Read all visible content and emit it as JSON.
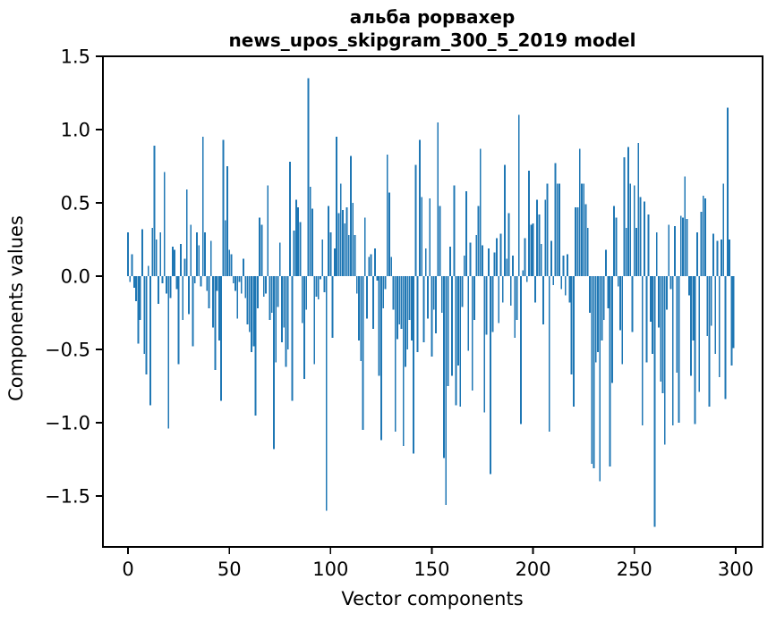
{
  "chart_data": {
    "type": "bar",
    "title_line1": "альба рорвахер",
    "title_line2": "news_upos_skipgram_300_5_2019 model",
    "xlabel": "Vector components",
    "ylabel": "Components values",
    "x_ticks": [
      0,
      50,
      100,
      150,
      200,
      250,
      300
    ],
    "y_ticks": [
      1.5,
      1.0,
      0.5,
      0.0,
      -0.5,
      -1.0,
      -1.5
    ],
    "xlim": [
      -12.4,
      313.3
    ],
    "ylim": [
      -1.848,
      1.5
    ],
    "bar_color": "#1f77b4",
    "spine_color": "#000000",
    "bar_width_units": 0.8,
    "x_start": 0,
    "grid": false,
    "legend": null,
    "values": [
      0.3,
      -0.04,
      0.15,
      -0.08,
      -0.17,
      -0.46,
      -0.3,
      0.32,
      -0.53,
      -0.67,
      0.07,
      -0.88,
      0.33,
      0.89,
      0.25,
      -0.19,
      0.3,
      -0.05,
      0.71,
      -0.12,
      -1.04,
      -0.15,
      0.2,
      0.18,
      -0.09,
      -0.6,
      0.22,
      -0.3,
      0.12,
      0.59,
      -0.26,
      0.35,
      -0.48,
      -0.05,
      0.3,
      0.21,
      -0.07,
      0.95,
      0.3,
      -0.1,
      -0.22,
      0.24,
      -0.35,
      -0.64,
      -0.1,
      -0.44,
      -0.85,
      0.93,
      0.38,
      0.75,
      0.18,
      0.15,
      -0.05,
      -0.1,
      -0.29,
      -0.04,
      -0.12,
      0.12,
      -0.15,
      -0.33,
      -0.38,
      -0.52,
      -0.48,
      -0.95,
      -0.22,
      0.4,
      0.35,
      -0.14,
      -0.12,
      0.62,
      -0.3,
      -0.25,
      -1.18,
      -0.59,
      -0.21,
      0.23,
      -0.45,
      -0.35,
      -0.62,
      -0.5,
      0.78,
      -0.85,
      0.31,
      0.52,
      0.47,
      0.37,
      -0.32,
      -0.7,
      -0.23,
      1.35,
      0.61,
      0.46,
      -0.6,
      -0.14,
      -0.16,
      -0.02,
      0.25,
      -0.11,
      -1.6,
      0.48,
      0.3,
      -0.42,
      0.19,
      0.95,
      0.43,
      0.63,
      0.45,
      0.36,
      0.47,
      0.28,
      0.82,
      0.5,
      0.28,
      -0.12,
      -0.44,
      -0.58,
      -1.05,
      0.4,
      -0.29,
      0.13,
      0.15,
      -0.36,
      0.19,
      -0.03,
      -0.68,
      -1.12,
      -0.22,
      -0.09,
      0.83,
      0.57,
      0.13,
      -0.23,
      -1.06,
      -0.43,
      -0.33,
      -0.36,
      -1.16,
      -0.62,
      -0.5,
      -0.3,
      -0.44,
      -1.21,
      0.76,
      -0.52,
      0.93,
      0.54,
      -0.45,
      0.19,
      -0.29,
      0.53,
      -0.55,
      -0.23,
      -0.39,
      1.05,
      0.48,
      -0.25,
      -1.24,
      -1.56,
      -0.75,
      0.2,
      -0.68,
      0.62,
      -0.88,
      -0.61,
      -0.89,
      -0.21,
      0.14,
      0.58,
      -0.51,
      0.23,
      -0.78,
      -0.3,
      0.28,
      0.48,
      0.87,
      0.21,
      -0.93,
      -0.4,
      0.19,
      -1.35,
      -0.38,
      0.16,
      0.26,
      -0.32,
      0.29,
      -0.18,
      0.76,
      0.12,
      0.43,
      -0.2,
      0.14,
      -0.42,
      -0.3,
      1.1,
      -1.01,
      0.04,
      0.26,
      -0.04,
      0.72,
      0.35,
      0.36,
      -0.18,
      0.52,
      0.42,
      0.22,
      -0.33,
      0.52,
      0.63,
      -1.06,
      0.24,
      -0.06,
      0.77,
      0.63,
      0.63,
      -0.09,
      0.14,
      -0.13,
      0.15,
      -0.18,
      -0.67,
      -0.89,
      0.47,
      0.47,
      0.87,
      0.63,
      0.63,
      0.49,
      0.33,
      -0.25,
      -1.28,
      -1.31,
      -0.59,
      -0.52,
      -1.4,
      -0.44,
      -0.3,
      0.18,
      -0.22,
      -1.3,
      -0.73,
      0.48,
      0.4,
      -0.07,
      -0.37,
      -0.6,
      0.81,
      0.33,
      0.88,
      0.63,
      -0.38,
      0.62,
      0.33,
      0.91,
      0.54,
      -1.02,
      0.51,
      -0.59,
      0.42,
      -0.31,
      -0.53,
      -1.71,
      0.3,
      -0.35,
      -0.72,
      -0.8,
      -1.15,
      -0.23,
      0.35,
      -0.09,
      -1.02,
      0.34,
      -0.66,
      -1.0,
      0.41,
      0.4,
      0.68,
      0.39,
      -0.13,
      -0.68,
      -0.44,
      -1.01,
      0.3,
      -0.79,
      0.44,
      0.55,
      0.53,
      -0.41,
      -0.89,
      -0.34,
      0.29,
      -0.53,
      0.24,
      -0.69,
      0.25,
      0.63,
      -0.84,
      1.15,
      0.25,
      -0.61,
      -0.49
    ]
  }
}
